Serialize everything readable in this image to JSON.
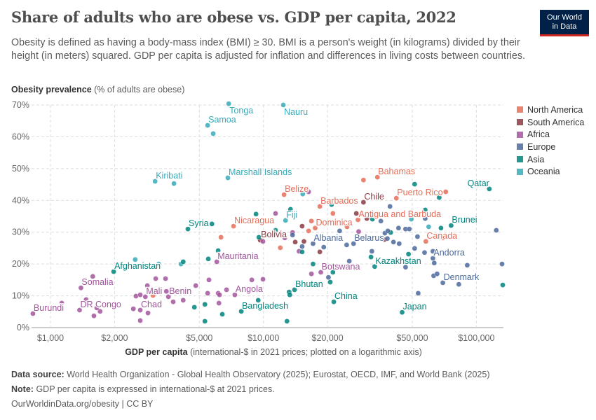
{
  "header": {
    "title": "Share of adults who are obese vs. GDP per capita, 2022",
    "subtitle": "Obesity is defined as having a body-mass index (BMI) ≥ 30. BMI is a person's weight (in kilograms) divided by their height (in meters) squared. GDP per capita is adjusted for inflation and differences in living costs between countries.",
    "logo_line1": "Our World",
    "logo_line2": "in Data"
  },
  "footer": {
    "source_label": "Data source:",
    "source_text": "World Health Organization - Global Health Observatory (2025); Eurostat, OECD, IMF, and World Bank (2025)",
    "note_label": "Note:",
    "note_text": "GDP per capita is expressed in international-$ at 2021 prices.",
    "url": "OurWorldinData.org/obesity | CC BY"
  },
  "chart_data": {
    "type": "scatter",
    "title": "Share of adults who are obese vs. GDP per capita, 2022",
    "ylabel_bold": "Obesity prevalence",
    "ylabel_rest": "(% of adults are obese)",
    "xlabel_bold": "GDP per capita",
    "xlabel_rest": "(international-$ in 2021 prices; plotted on a logarithmic axis)",
    "x_scale": "log",
    "xlim": [
      815,
      134000
    ],
    "ylim": [
      0,
      70
    ],
    "grid": true,
    "legend_position": "right",
    "x_ticks": [
      {
        "value": 1000,
        "label": "$1,000"
      },
      {
        "value": 2000,
        "label": "$2,000"
      },
      {
        "value": 5000,
        "label": "$5,000"
      },
      {
        "value": 10000,
        "label": "$10,000"
      },
      {
        "value": 20000,
        "label": "$20,000"
      },
      {
        "value": 50000,
        "label": "$50,000"
      },
      {
        "value": 100000,
        "label": "$100,000"
      }
    ],
    "y_ticks": [
      {
        "value": 0,
        "label": "0%"
      },
      {
        "value": 10,
        "label": "10%"
      },
      {
        "value": 20,
        "label": "20%"
      },
      {
        "value": 30,
        "label": "30%"
      },
      {
        "value": 40,
        "label": "40%"
      },
      {
        "value": 50,
        "label": "50%"
      },
      {
        "value": 60,
        "label": "60%"
      },
      {
        "value": 70,
        "label": "70%"
      }
    ],
    "series": [
      {
        "name": "North America",
        "key": "NA",
        "color": "#e56e5a"
      },
      {
        "name": "South America",
        "key": "SA",
        "color": "#8a3a42"
      },
      {
        "name": "Africa",
        "key": "AF",
        "color": "#a2559c"
      },
      {
        "name": "Europe",
        "key": "EU",
        "color": "#4c6a9c"
      },
      {
        "name": "Asia",
        "key": "AS",
        "color": "#00847e"
      },
      {
        "name": "Oceania",
        "key": "OC",
        "color": "#38aaba"
      }
    ],
    "points": [
      [
        6870,
        70.4,
        "OC",
        "Tonga"
      ],
      [
        12400,
        70.0,
        "OC",
        "Nauru"
      ],
      [
        5470,
        63.6,
        "OC",
        "Samoa"
      ],
      [
        5810,
        61.0,
        "OC",
        ""
      ],
      [
        3100,
        46.0,
        "OC",
        "Kiribati"
      ],
      [
        3800,
        45.3,
        "OC",
        ""
      ],
      [
        6810,
        47.1,
        "OC",
        "Marshall Islands"
      ],
      [
        2500,
        21.4,
        "OC",
        ""
      ],
      [
        4100,
        20.0,
        "OC",
        ""
      ],
      [
        3220,
        20.0,
        "OC",
        ""
      ],
      [
        12700,
        33.7,
        "OC",
        "Fiji"
      ],
      [
        15300,
        42.0,
        "OC",
        ""
      ],
      [
        49500,
        34.1,
        "OC",
        ""
      ],
      [
        59700,
        31.7,
        "OC",
        ""
      ],
      [
        7240,
        31.9,
        "NA",
        "Nicaragua"
      ],
      [
        6320,
        28.4,
        "NA",
        ""
      ],
      [
        3030,
        10.1,
        "NA",
        ""
      ],
      [
        12500,
        41.8,
        "NA",
        "Belize"
      ],
      [
        29500,
        46.4,
        "NA",
        ""
      ],
      [
        34300,
        47.3,
        "NA",
        "Bahamas"
      ],
      [
        71800,
        42.7,
        "NA",
        ""
      ],
      [
        42100,
        40.7,
        "NA",
        "Puerto Rico"
      ],
      [
        18400,
        38.1,
        "NA",
        "Barbados"
      ],
      [
        21200,
        35.9,
        "NA",
        ""
      ],
      [
        16800,
        33.5,
        "NA",
        ""
      ],
      [
        17500,
        31.3,
        "NA",
        "Dominica"
      ],
      [
        16300,
        30.4,
        "NA",
        ""
      ],
      [
        27800,
        33.9,
        "NA",
        "Antigua and Barbuda"
      ],
      [
        24700,
        31.7,
        "NA",
        ""
      ],
      [
        12000,
        25.1,
        "NA",
        ""
      ],
      [
        57900,
        27.1,
        "NA",
        "Canada"
      ],
      [
        69600,
        28.2,
        "NA",
        ""
      ],
      [
        9660,
        27.5,
        "SA",
        "Bolivia"
      ],
      [
        29500,
        39.4,
        "SA",
        "Chile"
      ],
      [
        27300,
        35.9,
        "SA",
        ""
      ],
      [
        30600,
        34.3,
        "SA",
        ""
      ],
      [
        15200,
        31.9,
        "SA",
        ""
      ],
      [
        14100,
        26.9,
        "SA",
        ""
      ],
      [
        15500,
        27.1,
        "SA",
        ""
      ],
      [
        18400,
        23.8,
        "SA",
        ""
      ],
      [
        37000,
        27.7,
        "SA",
        ""
      ],
      [
        1390,
        12.5,
        "AF",
        "Somalia"
      ],
      [
        1580,
        16.1,
        "AF",
        ""
      ],
      [
        1470,
        8.8,
        "AF",
        ""
      ],
      [
        1370,
        5.5,
        "AF",
        "DR Congo"
      ],
      [
        1600,
        3.7,
        "AF",
        ""
      ],
      [
        1710,
        5.1,
        "AF",
        ""
      ],
      [
        1650,
        6.2,
        "AF",
        ""
      ],
      [
        827,
        4.4,
        "AF",
        "Burundi"
      ],
      [
        1130,
        7.7,
        "AF",
        ""
      ],
      [
        2450,
        5.9,
        "AF",
        ""
      ],
      [
        2640,
        5.5,
        "AF",
        "Chad"
      ],
      [
        2870,
        4.6,
        "AF",
        ""
      ],
      [
        2640,
        2.2,
        "AF",
        ""
      ],
      [
        2520,
        9.9,
        "AF",
        ""
      ],
      [
        2640,
        10.3,
        "AF",
        ""
      ],
      [
        2790,
        9.7,
        "AF",
        "Mali"
      ],
      [
        2850,
        13.2,
        "AF",
        ""
      ],
      [
        3120,
        15.4,
        "AF",
        ""
      ],
      [
        3470,
        15.4,
        "AF",
        ""
      ],
      [
        3500,
        11.4,
        "AF",
        ""
      ],
      [
        3580,
        9.7,
        "AF",
        "Benin"
      ],
      [
        3770,
        8.1,
        "AF",
        ""
      ],
      [
        4200,
        8.6,
        "AF",
        ""
      ],
      [
        4810,
        13.2,
        "AF",
        ""
      ],
      [
        5550,
        15.0,
        "AF",
        ""
      ],
      [
        5470,
        10.8,
        "AF",
        ""
      ],
      [
        6130,
        10.8,
        "AF",
        ""
      ],
      [
        6220,
        10.3,
        "AF",
        ""
      ],
      [
        6180,
        7.7,
        "AF",
        ""
      ],
      [
        6710,
        11.9,
        "AF",
        ""
      ],
      [
        7340,
        10.3,
        "AF",
        "Angola"
      ],
      [
        8820,
        15.0,
        "AF",
        ""
      ],
      [
        9950,
        15.2,
        "AF",
        ""
      ],
      [
        6040,
        20.7,
        "AF",
        "Mauritania"
      ],
      [
        9950,
        27.1,
        "AF",
        ""
      ],
      [
        16300,
        42.7,
        "AF",
        ""
      ],
      [
        11400,
        35.9,
        "AF",
        ""
      ],
      [
        13700,
        29.9,
        "AF",
        ""
      ],
      [
        12600,
        28.2,
        "AF",
        ""
      ],
      [
        28000,
        30.2,
        "AF",
        ""
      ],
      [
        14700,
        24.0,
        "AF",
        ""
      ],
      [
        18600,
        17.4,
        "AF",
        "Botswana"
      ],
      [
        16800,
        16.9,
        "AF",
        ""
      ],
      [
        1980,
        17.6,
        "AS",
        "Afghanistan"
      ],
      [
        4420,
        31.0,
        "AS",
        "Syria"
      ],
      [
        5730,
        32.6,
        "AS",
        ""
      ],
      [
        9230,
        35.7,
        "AS",
        ""
      ],
      [
        6130,
        24.2,
        "AS",
        ""
      ],
      [
        5510,
        21.6,
        "AS",
        ""
      ],
      [
        4200,
        20.7,
        "AS",
        ""
      ],
      [
        4740,
        6.4,
        "AS",
        ""
      ],
      [
        5310,
        7.3,
        "AS",
        ""
      ],
      [
        5310,
        2.0,
        "AS",
        ""
      ],
      [
        6410,
        4.2,
        "AS",
        ""
      ],
      [
        7870,
        5.1,
        "AS",
        "Bangladesh"
      ],
      [
        9450,
        8.6,
        "AS",
        ""
      ],
      [
        9520,
        28.4,
        "AS",
        ""
      ],
      [
        51300,
        45.1,
        "AS",
        ""
      ],
      [
        66900,
        40.9,
        "AS",
        ""
      ],
      [
        13400,
        37.2,
        "AS",
        ""
      ],
      [
        20900,
        38.7,
        "AS",
        ""
      ],
      [
        32500,
        34.1,
        "AS",
        ""
      ],
      [
        57500,
        37.0,
        "AS",
        ""
      ],
      [
        68200,
        31.3,
        "AS",
        ""
      ],
      [
        76100,
        32.1,
        "AS",
        "Brunei"
      ],
      [
        115000,
        43.6,
        "AS",
        "Qatar"
      ],
      [
        11400,
        30.6,
        "AS",
        ""
      ],
      [
        15200,
        23.8,
        "AS",
        ""
      ],
      [
        17100,
        20.0,
        "AS",
        ""
      ],
      [
        21200,
        17.4,
        "AS",
        ""
      ],
      [
        20600,
        14.3,
        "AS",
        ""
      ],
      [
        32000,
        22.2,
        "AS",
        ""
      ],
      [
        33300,
        19.2,
        "AS",
        "Kazakhstan"
      ],
      [
        48000,
        23.1,
        "AS",
        ""
      ],
      [
        13200,
        11.2,
        "AS",
        ""
      ],
      [
        13300,
        10.3,
        "AS",
        ""
      ],
      [
        14000,
        11.9,
        "AS",
        "Bhutan"
      ],
      [
        21400,
        8.1,
        "AS",
        "China"
      ],
      [
        44800,
        4.8,
        "AS",
        "Japan"
      ],
      [
        133000,
        13.4,
        "AS",
        ""
      ],
      [
        12900,
        2.0,
        "AS",
        ""
      ],
      [
        39600,
        29.9,
        "AS",
        ""
      ],
      [
        13700,
        29.1,
        "EU",
        ""
      ],
      [
        15200,
        25.5,
        "EU",
        ""
      ],
      [
        17100,
        26.4,
        "EU",
        "Albania"
      ],
      [
        19200,
        25.3,
        "EU",
        ""
      ],
      [
        22800,
        30.4,
        "EU",
        ""
      ],
      [
        24600,
        26.0,
        "EU",
        ""
      ],
      [
        26500,
        26.4,
        "EU",
        "Belarus"
      ],
      [
        25300,
        20.9,
        "EU",
        ""
      ],
      [
        32300,
        24.0,
        "EU",
        ""
      ],
      [
        35600,
        33.5,
        "EU",
        ""
      ],
      [
        39300,
        38.1,
        "EU",
        ""
      ],
      [
        37200,
        29.7,
        "EU",
        ""
      ],
      [
        38400,
        30.4,
        "EU",
        ""
      ],
      [
        38200,
        28.0,
        "EU",
        ""
      ],
      [
        40800,
        26.9,
        "EU",
        ""
      ],
      [
        43400,
        26.4,
        "EU",
        ""
      ],
      [
        43100,
        31.3,
        "EU",
        ""
      ],
      [
        46500,
        31.0,
        "EU",
        ""
      ],
      [
        48400,
        31.0,
        "EU",
        ""
      ],
      [
        52900,
        28.6,
        "EU",
        ""
      ],
      [
        51300,
        24.9,
        "EU",
        ""
      ],
      [
        57500,
        34.3,
        "EU",
        ""
      ],
      [
        57100,
        23.6,
        "EU",
        ""
      ],
      [
        62500,
        24.0,
        "EU",
        ""
      ],
      [
        62500,
        21.8,
        "EU",
        "Andorra"
      ],
      [
        63400,
        20.3,
        "EU",
        ""
      ],
      [
        46500,
        19.0,
        "EU",
        ""
      ],
      [
        63000,
        16.3,
        "EU",
        ""
      ],
      [
        65400,
        16.9,
        "EU",
        ""
      ],
      [
        69600,
        14.1,
        "EU",
        "Denmark"
      ],
      [
        82700,
        13.6,
        "EU",
        ""
      ],
      [
        90600,
        19.6,
        "EU",
        ""
      ],
      [
        124000,
        30.6,
        "EU",
        ""
      ],
      [
        132000,
        20.0,
        "EU",
        ""
      ],
      [
        53300,
        10.8,
        "EU",
        ""
      ],
      [
        20200,
        15.8,
        "EU",
        ""
      ]
    ]
  }
}
